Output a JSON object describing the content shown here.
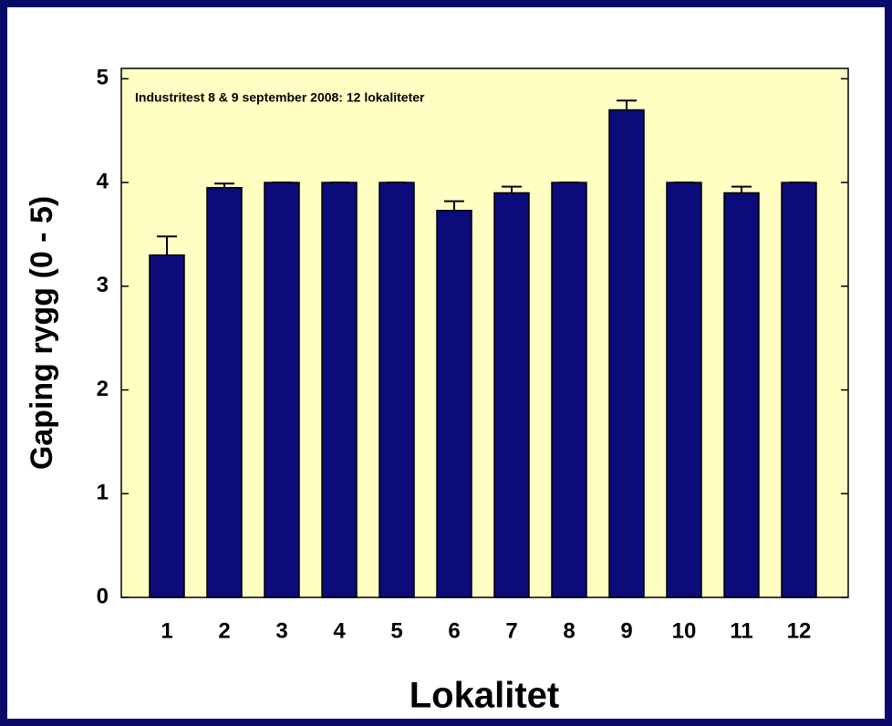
{
  "chart_data": {
    "type": "bar",
    "annotation": "Industritest 8 & 9 september 2008: 12 lokaliteter",
    "x_label": "Lokalitet",
    "y_label": "Gaping rygg (0 - 5)",
    "categories": [
      "1",
      "2",
      "3",
      "4",
      "5",
      "6",
      "7",
      "8",
      "9",
      "10",
      "11",
      "12"
    ],
    "values": [
      3.3,
      3.95,
      4,
      4,
      4,
      3.73,
      3.9,
      4,
      4.7,
      4,
      3.9,
      4
    ],
    "errors": [
      0.18,
      0.04,
      0,
      0,
      0,
      0.09,
      0.06,
      0,
      0.09,
      0,
      0.06,
      0
    ],
    "color": "#0b0b7a",
    "ylim": [
      0,
      5.1
    ],
    "yticks": [
      0,
      1,
      2,
      3,
      4,
      5
    ],
    "grid": false
  }
}
